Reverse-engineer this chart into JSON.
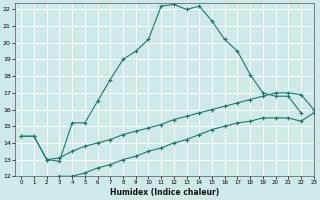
{
  "title": "",
  "xlabel": "Humidex (Indice chaleur)",
  "ylabel": "",
  "bg_color": "#cfe8e8",
  "line_color": "#1a7a6a",
  "xlim": [
    -0.5,
    23
  ],
  "ylim": [
    12,
    22.4
  ],
  "xticks": [
    0,
    1,
    2,
    3,
    4,
    5,
    6,
    7,
    8,
    9,
    10,
    11,
    12,
    13,
    14,
    15,
    16,
    17,
    18,
    19,
    20,
    21,
    22,
    23
  ],
  "yticks": [
    12,
    13,
    14,
    15,
    16,
    17,
    18,
    19,
    20,
    21,
    22
  ],
  "line1": {
    "x": [
      0,
      1,
      2,
      3,
      4,
      5,
      6,
      7,
      8,
      9,
      10,
      11,
      12,
      13,
      14,
      15,
      16,
      17,
      18,
      19,
      20,
      21,
      22
    ],
    "y": [
      14.4,
      14.4,
      13.0,
      12.9,
      15.2,
      15.2,
      16.5,
      17.8,
      19.0,
      19.5,
      20.2,
      22.2,
      22.3,
      22.0,
      22.2,
      21.3,
      20.2,
      19.5,
      18.1,
      17.0,
      16.8,
      16.8,
      15.8
    ]
  },
  "line2": {
    "x": [
      0,
      1,
      2,
      3,
      4,
      5,
      6,
      7,
      8,
      9,
      10,
      11,
      12,
      13,
      14,
      15,
      16,
      17,
      18,
      19,
      20,
      21,
      22,
      23
    ],
    "y": [
      14.4,
      14.4,
      13.0,
      13.1,
      13.5,
      13.8,
      14.0,
      14.2,
      14.5,
      14.7,
      14.9,
      15.1,
      15.4,
      15.6,
      15.8,
      16.0,
      16.2,
      16.4,
      16.6,
      16.8,
      17.0,
      17.0,
      16.9,
      16.0
    ]
  },
  "line3": {
    "x": [
      2,
      3,
      4,
      5,
      6,
      7,
      8,
      9,
      10,
      11,
      12,
      13,
      14,
      15,
      16,
      17,
      18,
      19,
      20,
      21,
      22,
      23
    ],
    "y": [
      11.8,
      12.0,
      12.0,
      12.2,
      12.5,
      12.7,
      13.0,
      13.2,
      13.5,
      13.7,
      14.0,
      14.2,
      14.5,
      14.8,
      15.0,
      15.2,
      15.3,
      15.5,
      15.5,
      15.5,
      15.3,
      15.8
    ]
  }
}
